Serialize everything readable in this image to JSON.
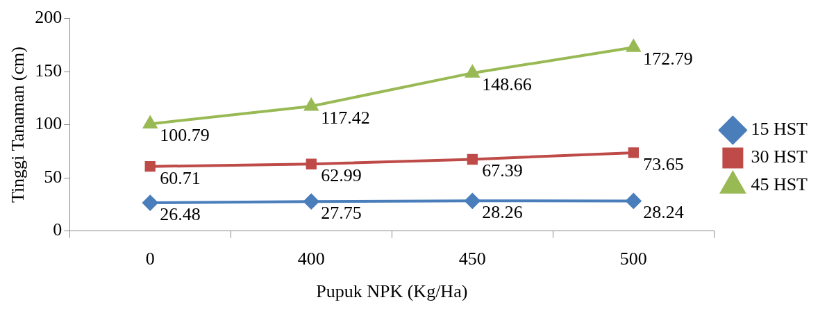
{
  "chart_data": {
    "type": "line",
    "xlabel": "Pupuk NPK (Kg/Ha)",
    "ylabel": "Tinggi Tanaman (cm)",
    "categories": [
      "0",
      "400",
      "450",
      "500"
    ],
    "series": [
      {
        "name": "15 HST",
        "color": "#4a7ebb",
        "marker": "diamond",
        "values": [
          26.48,
          27.75,
          28.26,
          28.24
        ]
      },
      {
        "name": "30 HST",
        "color": "#be4b48",
        "marker": "square",
        "values": [
          60.71,
          62.99,
          67.39,
          73.65
        ]
      },
      {
        "name": "45 HST",
        "color": "#98b954",
        "marker": "triangle",
        "values": [
          100.79,
          117.42,
          148.66,
          172.79
        ]
      }
    ],
    "ylim": [
      0,
      200
    ],
    "yticks": [
      0,
      50,
      100,
      150,
      200
    ],
    "grid": false,
    "legend": "right",
    "data_labels": true
  }
}
